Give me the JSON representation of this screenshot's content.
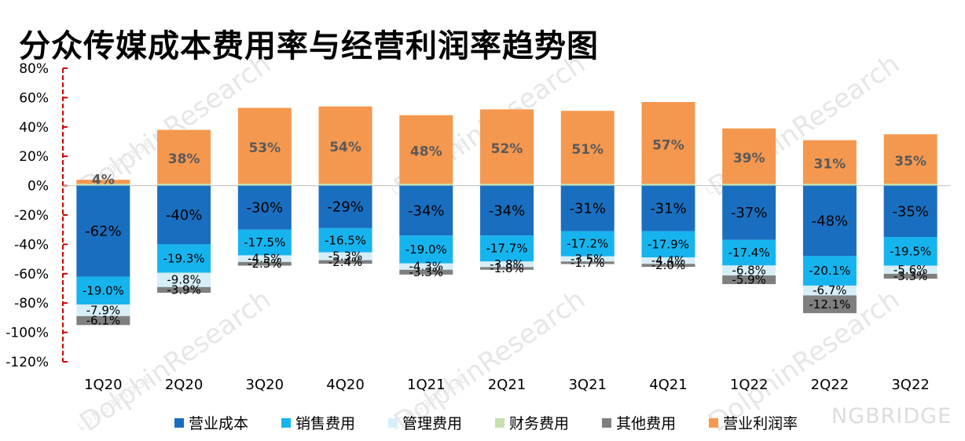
{
  "title": "分众传媒成本费用率与经营利润率趋势图",
  "watermarks": [
    "DolphinResearch",
    "LONGBRIDGE"
  ],
  "corner_brand": "NGBRIDGE",
  "colors": {
    "营业成本": "#1a6ebf",
    "销售费用": "#16b4ef",
    "管理费用": "#d6eef7",
    "财务费用": "#c6e0b0",
    "其他费用": "#7f7f7f",
    "营业利润率": "#f5984f",
    "axis": "#cc0000"
  },
  "chart_data": {
    "type": "bar",
    "stacked": true,
    "title": "分众传媒成本费用率与经营利润率趋势图",
    "categories": [
      "1Q20",
      "2Q20",
      "3Q20",
      "4Q20",
      "1Q21",
      "2Q21",
      "3Q21",
      "4Q21",
      "1Q22",
      "2Q22",
      "3Q22"
    ],
    "ylim": [
      -120,
      80
    ],
    "yticks": [
      80,
      60,
      40,
      20,
      0,
      -20,
      -40,
      -60,
      -80,
      -100,
      -120
    ],
    "ytick_labels": [
      "80%",
      "60%",
      "40%",
      "20%",
      "0%",
      "-20%",
      "-40%",
      "-60%",
      "-80%",
      "-100%",
      "-120%"
    ],
    "grid": false,
    "legend_position": "bottom",
    "series": [
      {
        "name": "营业成本",
        "values": [
          -62,
          -40,
          -30,
          -29,
          -34,
          -34,
          -31,
          -31,
          -37,
          -48,
          -35
        ],
        "labels": [
          "-62%",
          "-40%",
          "-30%",
          "-29%",
          "-34%",
          "-34%",
          "-31%",
          "-31%",
          "-37%",
          "-48%",
          "-35%"
        ]
      },
      {
        "name": "销售费用",
        "values": [
          -19.0,
          -19.3,
          -17.5,
          -16.5,
          -19.0,
          -17.7,
          -17.2,
          -17.9,
          -17.4,
          -20.1,
          -19.5
        ],
        "labels": [
          "-19.0%",
          "-19.3%",
          "-17.5%",
          "-16.5%",
          "-19.0%",
          "-17.7%",
          "-17.2%",
          "-17.9%",
          "-17.4%",
          "-20.1%",
          "-19.5%"
        ]
      },
      {
        "name": "管理费用",
        "values": [
          -7.9,
          -9.8,
          -4.5,
          -5.3,
          -4.3,
          -3.8,
          -3.5,
          -4.4,
          -6.8,
          -6.7,
          -5.6
        ],
        "labels": [
          "-7.9%",
          "-9.8%",
          "-4.5%",
          "-5.3%",
          "-4.3%",
          "-3.8%",
          "-3.5%",
          "-4.4%",
          "-6.8%",
          "-6.7%",
          "-5.6%"
        ]
      },
      {
        "name": "财务费用",
        "values": [
          0,
          0,
          0,
          0,
          0,
          0,
          0,
          0,
          0,
          0,
          0
        ],
        "labels": []
      },
      {
        "name": "其他费用",
        "values": [
          -6.1,
          -3.9,
          -2.5,
          -2.4,
          -3.3,
          -1.8,
          -1.7,
          -2.0,
          -5.9,
          -12.1,
          -3.3
        ],
        "labels": [
          "-6.1%",
          "-3.9%",
          "-2.5%",
          "-2.4%",
          "-3.3%",
          "-1.8%",
          "-1.7%",
          "-2.0%",
          "-5.9%",
          "-12.1%",
          "-3.3%"
        ]
      },
      {
        "name": "营业利润率",
        "values": [
          4,
          38,
          53,
          54,
          48,
          52,
          51,
          57,
          39,
          31,
          35
        ],
        "labels": [
          "4%",
          "38%",
          "53%",
          "54%",
          "48%",
          "52%",
          "51%",
          "57%",
          "39%",
          "31%",
          "35%"
        ]
      }
    ]
  }
}
